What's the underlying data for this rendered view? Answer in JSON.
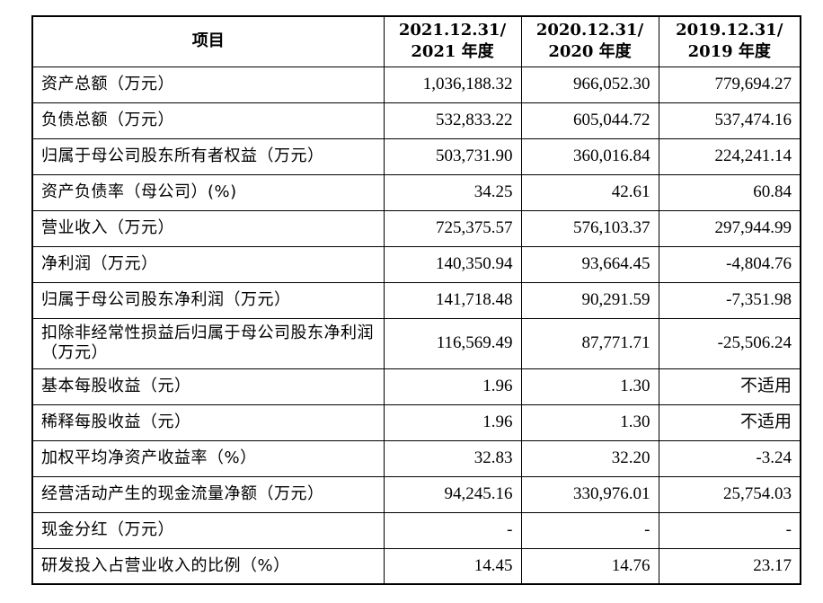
{
  "table": {
    "headers": [
      {
        "line1": "项目",
        "line2": ""
      },
      {
        "line1": "2021.12.31/",
        "line2": "2021 年度"
      },
      {
        "line1": "2020.12.31/",
        "line2": "2020 年度"
      },
      {
        "line1": "2019.12.31/",
        "line2": "2019 年度"
      }
    ],
    "rows": [
      {
        "label": "资产总额（万元）",
        "v2021": "1,036,188.32",
        "v2020": "966,052.30",
        "v2019": "779,694.27"
      },
      {
        "label": "负债总额（万元）",
        "v2021": "532,833.22",
        "v2020": "605,044.72",
        "v2019": "537,474.16"
      },
      {
        "label": "归属于母公司股东所有者权益（万元）",
        "v2021": "503,731.90",
        "v2020": "360,016.84",
        "v2019": "224,241.14"
      },
      {
        "label": "资产负债率（母公司）(%)",
        "v2021": "34.25",
        "v2020": "42.61",
        "v2019": "60.84"
      },
      {
        "label": "营业收入（万元）",
        "v2021": "725,375.57",
        "v2020": "576,103.37",
        "v2019": "297,944.99"
      },
      {
        "label": "净利润（万元）",
        "v2021": "140,350.94",
        "v2020": "93,664.45",
        "v2019": "-4,804.76"
      },
      {
        "label": "归属于母公司股东净利润（万元）",
        "v2021": "141,718.48",
        "v2020": "90,291.59",
        "v2019": "-7,351.98"
      },
      {
        "label": "扣除非经常性损益后归属于母公司股东净利润（万元）",
        "v2021": "116,569.49",
        "v2020": "87,771.71",
        "v2019": "-25,506.24"
      },
      {
        "label": "基本每股收益（元）",
        "v2021": "1.96",
        "v2020": "1.30",
        "v2019": "不适用"
      },
      {
        "label": "稀释每股收益（元）",
        "v2021": "1.96",
        "v2020": "1.30",
        "v2019": "不适用"
      },
      {
        "label": "加权平均净资产收益率（%）",
        "v2021": "32.83",
        "v2020": "32.20",
        "v2019": "-3.24"
      },
      {
        "label": "经营活动产生的现金流量净额（万元）",
        "v2021": "94,245.16",
        "v2020": "330,976.01",
        "v2019": "25,754.03"
      },
      {
        "label": "现金分红（万元）",
        "v2021": "-",
        "v2020": "-",
        "v2019": "-"
      },
      {
        "label": "研发投入占营业收入的比例（%）",
        "v2021": "14.45",
        "v2020": "14.76",
        "v2019": "23.17"
      }
    ]
  }
}
